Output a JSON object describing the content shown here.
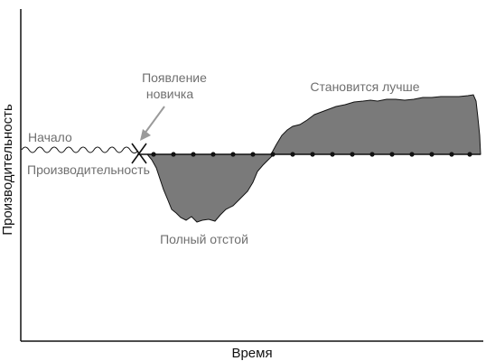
{
  "axes": {
    "x_label": "Время",
    "y_label": "Производительность"
  },
  "annotations": {
    "start": "Начало",
    "baseline": "Производительность",
    "newcomer_line1": "Появление",
    "newcomer_line2": "новичка",
    "getting_better": "Становится лучше",
    "total_mess": "Полный отстой"
  },
  "colors": {
    "fill": "#7a7a7a",
    "stroke": "#111111",
    "label": "#6f6f6f",
    "arrow": "#9a9a9a"
  }
}
